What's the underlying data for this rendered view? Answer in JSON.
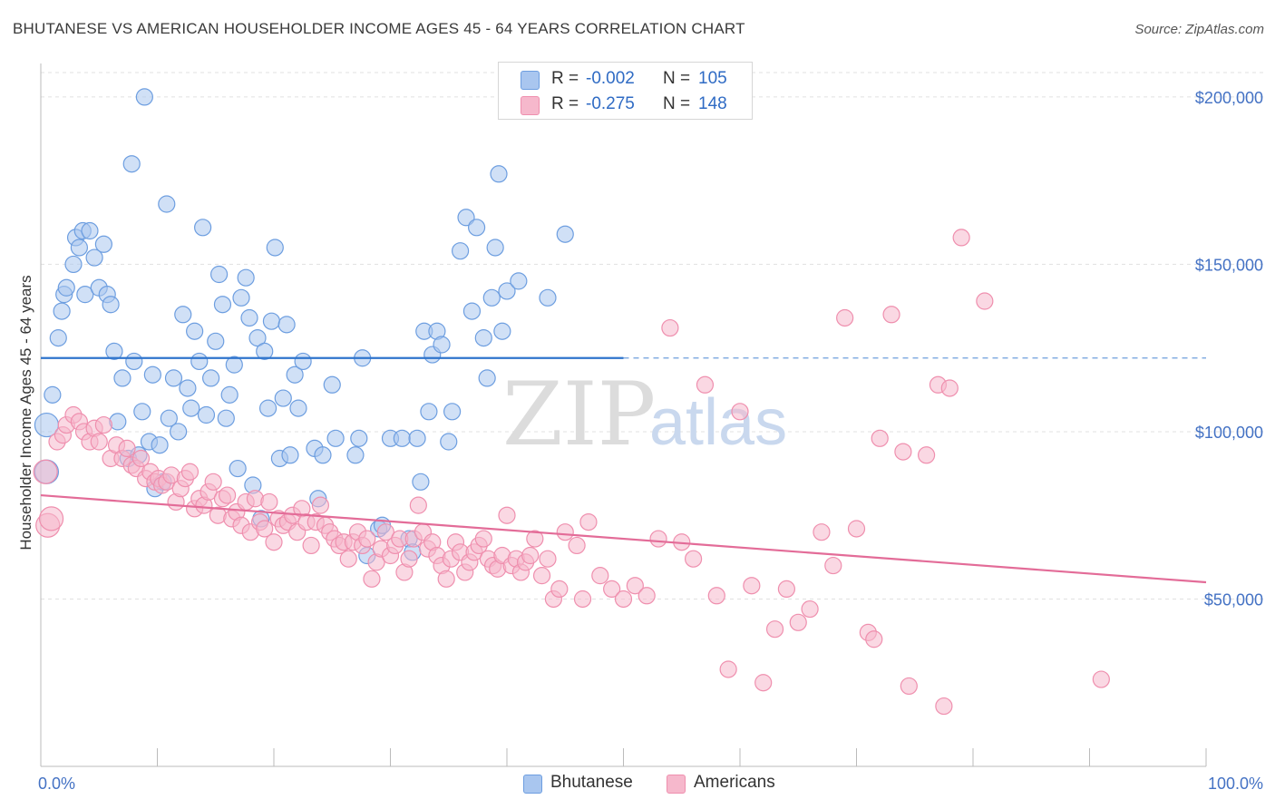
{
  "header": {
    "title": "BHUTANESE VS AMERICAN HOUSEHOLDER INCOME AGES 45 - 64 YEARS CORRELATION CHART",
    "source": "Source: ZipAtlas.com"
  },
  "watermark": {
    "zip": "ZIP",
    "atlas": "atlas"
  },
  "legend": {
    "rows": [
      {
        "r_label": "R =",
        "r_value": "-0.002",
        "n_label": "N =",
        "n_value": "105"
      },
      {
        "r_label": "R =",
        "r_value": "-0.275",
        "n_label": "N =",
        "n_value": "148"
      }
    ]
  },
  "bottom_legend": {
    "series1": "Bhutanese",
    "series2": "Americans"
  },
  "colors": {
    "blue_fill": "#a9c6ef",
    "blue_stroke": "#6d9ee0",
    "blue_line": "#2f74cc",
    "pink_fill": "#f6b8cc",
    "pink_stroke": "#ef8fae",
    "pink_line": "#e36c98",
    "grid": "#e1e1e1",
    "tick_text": "#4472c4"
  },
  "chart_data": {
    "type": "scatter",
    "title": "BHUTANESE VS AMERICAN HOUSEHOLDER INCOME AGES 45 - 64 YEARS CORRELATION CHART",
    "xlabel": "",
    "ylabel": "Householder Income Ages 45 - 64 years",
    "xlim": [
      0,
      100
    ],
    "ylim": [
      0,
      210000
    ],
    "x_tick_labels": [
      "0.0%",
      "100.0%"
    ],
    "y_ticks": [
      50000,
      100000,
      150000,
      200000
    ],
    "y_tick_labels": [
      "$50,000",
      "$100,000",
      "$150,000",
      "$200,000"
    ],
    "grid": true,
    "legend_position": "top-center",
    "series": [
      {
        "name": "Bhutanese",
        "R": -0.002,
        "N": 105,
        "trend": {
          "x": [
            0,
            50
          ],
          "y": [
            122000,
            122000
          ],
          "dashed_extension_x": [
            50,
            100
          ]
        },
        "points": [
          [
            0.5,
            88000
          ],
          [
            0.5,
            102000
          ],
          [
            1.0,
            111000
          ],
          [
            1.5,
            128000
          ],
          [
            1.8,
            136000
          ],
          [
            2.0,
            141000
          ],
          [
            2.2,
            143000
          ],
          [
            2.8,
            150000
          ],
          [
            3.0,
            158000
          ],
          [
            3.3,
            155000
          ],
          [
            3.6,
            160000
          ],
          [
            3.8,
            141000
          ],
          [
            4.2,
            160000
          ],
          [
            4.6,
            152000
          ],
          [
            5.0,
            143000
          ],
          [
            5.4,
            156000
          ],
          [
            5.7,
            141000
          ],
          [
            6.0,
            138000
          ],
          [
            6.3,
            124000
          ],
          [
            6.6,
            103000
          ],
          [
            7.0,
            116000
          ],
          [
            7.5,
            92000
          ],
          [
            7.8,
            180000
          ],
          [
            8.0,
            121000
          ],
          [
            8.4,
            93000
          ],
          [
            8.7,
            106000
          ],
          [
            8.9,
            200000
          ],
          [
            9.3,
            97000
          ],
          [
            9.6,
            117000
          ],
          [
            9.8,
            83000
          ],
          [
            10.2,
            96000
          ],
          [
            10.5,
            85000
          ],
          [
            10.8,
            168000
          ],
          [
            11.0,
            104000
          ],
          [
            11.4,
            116000
          ],
          [
            11.8,
            100000
          ],
          [
            12.2,
            135000
          ],
          [
            12.6,
            113000
          ],
          [
            12.9,
            107000
          ],
          [
            13.2,
            130000
          ],
          [
            13.6,
            121000
          ],
          [
            13.9,
            161000
          ],
          [
            14.2,
            105000
          ],
          [
            14.6,
            116000
          ],
          [
            15.0,
            127000
          ],
          [
            15.3,
            147000
          ],
          [
            15.6,
            138000
          ],
          [
            15.9,
            104000
          ],
          [
            16.2,
            111000
          ],
          [
            16.6,
            120000
          ],
          [
            16.9,
            89000
          ],
          [
            17.2,
            140000
          ],
          [
            17.6,
            146000
          ],
          [
            17.9,
            134000
          ],
          [
            18.2,
            84000
          ],
          [
            18.6,
            128000
          ],
          [
            18.9,
            74000
          ],
          [
            19.2,
            124000
          ],
          [
            19.5,
            107000
          ],
          [
            19.8,
            133000
          ],
          [
            20.1,
            155000
          ],
          [
            20.5,
            92000
          ],
          [
            20.8,
            110000
          ],
          [
            21.1,
            132000
          ],
          [
            21.4,
            93000
          ],
          [
            21.8,
            117000
          ],
          [
            22.1,
            107000
          ],
          [
            22.5,
            121000
          ],
          [
            23.5,
            95000
          ],
          [
            23.8,
            80000
          ],
          [
            24.2,
            93000
          ],
          [
            25.0,
            114000
          ],
          [
            25.3,
            98000
          ],
          [
            27.0,
            93000
          ],
          [
            27.3,
            98000
          ],
          [
            27.6,
            122000
          ],
          [
            28.0,
            63000
          ],
          [
            29.0,
            71000
          ],
          [
            29.3,
            72000
          ],
          [
            30.0,
            98000
          ],
          [
            31.0,
            98000
          ],
          [
            31.6,
            68000
          ],
          [
            31.9,
            64000
          ],
          [
            32.3,
            98000
          ],
          [
            32.6,
            85000
          ],
          [
            32.9,
            130000
          ],
          [
            33.3,
            106000
          ],
          [
            33.6,
            123000
          ],
          [
            34.0,
            130000
          ],
          [
            34.4,
            126000
          ],
          [
            35.0,
            97000
          ],
          [
            35.3,
            106000
          ],
          [
            36.0,
            154000
          ],
          [
            36.5,
            164000
          ],
          [
            37.0,
            136000
          ],
          [
            37.4,
            161000
          ],
          [
            38.0,
            128000
          ],
          [
            38.3,
            116000
          ],
          [
            38.7,
            140000
          ],
          [
            39.0,
            155000
          ],
          [
            39.3,
            177000
          ],
          [
            39.6,
            130000
          ],
          [
            40.0,
            142000
          ],
          [
            41.0,
            145000
          ],
          [
            43.5,
            140000
          ],
          [
            45.0,
            159000
          ]
        ]
      },
      {
        "name": "Americans",
        "R": -0.275,
        "N": 148,
        "trend": {
          "x": [
            0,
            100
          ],
          "y": [
            81000,
            55000
          ]
        },
        "points": [
          [
            0.4,
            88000
          ],
          [
            0.6,
            72000
          ],
          [
            0.9,
            74000
          ],
          [
            1.4,
            97000
          ],
          [
            1.9,
            99000
          ],
          [
            2.2,
            102000
          ],
          [
            2.8,
            105000
          ],
          [
            3.3,
            103000
          ],
          [
            3.7,
            100000
          ],
          [
            4.2,
            97000
          ],
          [
            4.6,
            101000
          ],
          [
            5.0,
            97000
          ],
          [
            5.4,
            102000
          ],
          [
            6.0,
            92000
          ],
          [
            6.5,
            96000
          ],
          [
            7.0,
            92000
          ],
          [
            7.4,
            95000
          ],
          [
            7.8,
            90000
          ],
          [
            8.2,
            89000
          ],
          [
            8.6,
            92000
          ],
          [
            9.0,
            86000
          ],
          [
            9.4,
            88000
          ],
          [
            9.8,
            85000
          ],
          [
            10.1,
            86000
          ],
          [
            10.4,
            84000
          ],
          [
            10.8,
            85000
          ],
          [
            11.2,
            87000
          ],
          [
            11.6,
            79000
          ],
          [
            12.0,
            83000
          ],
          [
            12.4,
            86000
          ],
          [
            12.8,
            88000
          ],
          [
            13.2,
            77000
          ],
          [
            13.6,
            80000
          ],
          [
            14.0,
            78000
          ],
          [
            14.4,
            82000
          ],
          [
            14.8,
            85000
          ],
          [
            15.2,
            75000
          ],
          [
            15.6,
            80000
          ],
          [
            16.0,
            81000
          ],
          [
            16.4,
            74000
          ],
          [
            16.8,
            76000
          ],
          [
            17.2,
            72000
          ],
          [
            17.6,
            79000
          ],
          [
            18.0,
            70000
          ],
          [
            18.4,
            80000
          ],
          [
            18.8,
            73000
          ],
          [
            19.2,
            71000
          ],
          [
            19.6,
            79000
          ],
          [
            20.0,
            67000
          ],
          [
            20.4,
            74000
          ],
          [
            20.8,
            72000
          ],
          [
            21.2,
            73000
          ],
          [
            21.6,
            75000
          ],
          [
            22.0,
            70000
          ],
          [
            22.4,
            77000
          ],
          [
            22.8,
            73000
          ],
          [
            23.2,
            66000
          ],
          [
            23.6,
            73000
          ],
          [
            24.0,
            78000
          ],
          [
            24.4,
            72000
          ],
          [
            24.8,
            70000
          ],
          [
            25.2,
            68000
          ],
          [
            25.6,
            66000
          ],
          [
            26.0,
            67000
          ],
          [
            26.4,
            62000
          ],
          [
            26.8,
            67000
          ],
          [
            27.2,
            70000
          ],
          [
            27.6,
            66000
          ],
          [
            28.0,
            68000
          ],
          [
            28.4,
            56000
          ],
          [
            28.8,
            61000
          ],
          [
            29.2,
            65000
          ],
          [
            29.6,
            70000
          ],
          [
            30.0,
            63000
          ],
          [
            30.4,
            66000
          ],
          [
            30.8,
            68000
          ],
          [
            31.2,
            58000
          ],
          [
            31.6,
            62000
          ],
          [
            32.0,
            68000
          ],
          [
            32.4,
            78000
          ],
          [
            32.8,
            70000
          ],
          [
            33.2,
            65000
          ],
          [
            33.6,
            67000
          ],
          [
            34.0,
            63000
          ],
          [
            34.4,
            60000
          ],
          [
            34.8,
            56000
          ],
          [
            35.2,
            62000
          ],
          [
            35.6,
            67000
          ],
          [
            36.0,
            64000
          ],
          [
            36.4,
            58000
          ],
          [
            36.8,
            61000
          ],
          [
            37.2,
            64000
          ],
          [
            37.6,
            66000
          ],
          [
            38.0,
            68000
          ],
          [
            38.4,
            62000
          ],
          [
            38.8,
            60000
          ],
          [
            39.2,
            59000
          ],
          [
            39.6,
            63000
          ],
          [
            40.0,
            75000
          ],
          [
            40.4,
            60000
          ],
          [
            40.8,
            62000
          ],
          [
            41.2,
            58000
          ],
          [
            41.6,
            61000
          ],
          [
            42.0,
            63000
          ],
          [
            42.4,
            68000
          ],
          [
            43.0,
            57000
          ],
          [
            43.5,
            62000
          ],
          [
            44.0,
            50000
          ],
          [
            44.5,
            53000
          ],
          [
            45.0,
            70000
          ],
          [
            46.0,
            66000
          ],
          [
            46.5,
            50000
          ],
          [
            47.0,
            73000
          ],
          [
            48.0,
            57000
          ],
          [
            49.0,
            53000
          ],
          [
            50.0,
            50000
          ],
          [
            51.0,
            54000
          ],
          [
            52.0,
            51000
          ],
          [
            53.0,
            68000
          ],
          [
            54.0,
            131000
          ],
          [
            55.0,
            67000
          ],
          [
            56.0,
            62000
          ],
          [
            57.0,
            114000
          ],
          [
            58.0,
            51000
          ],
          [
            59.0,
            29000
          ],
          [
            60.0,
            106000
          ],
          [
            61.0,
            54000
          ],
          [
            62.0,
            25000
          ],
          [
            63.0,
            41000
          ],
          [
            64.0,
            53000
          ],
          [
            65.0,
            43000
          ],
          [
            66.0,
            47000
          ],
          [
            67.0,
            70000
          ],
          [
            68.0,
            60000
          ],
          [
            69.0,
            134000
          ],
          [
            70.0,
            71000
          ],
          [
            71.0,
            40000
          ],
          [
            71.5,
            38000
          ],
          [
            72.0,
            98000
          ],
          [
            73.0,
            135000
          ],
          [
            74.0,
            94000
          ],
          [
            74.5,
            24000
          ],
          [
            76.0,
            93000
          ],
          [
            77.0,
            114000
          ],
          [
            77.5,
            18000
          ],
          [
            78.0,
            113000
          ],
          [
            79.0,
            158000
          ],
          [
            81.0,
            139000
          ],
          [
            91.0,
            26000
          ]
        ]
      }
    ]
  }
}
